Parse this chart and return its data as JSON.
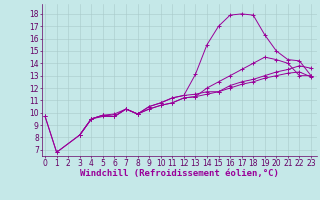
{
  "xlabel": "Windchill (Refroidissement éolien,°C)",
  "background_color": "#c5e8e8",
  "grid_color": "#aacaca",
  "line_color": "#990099",
  "x_ticks": [
    0,
    1,
    2,
    3,
    4,
    5,
    6,
    7,
    8,
    9,
    10,
    11,
    12,
    13,
    14,
    15,
    16,
    17,
    18,
    19,
    20,
    21,
    22,
    23
  ],
  "y_ticks": [
    7,
    8,
    9,
    10,
    11,
    12,
    13,
    14,
    15,
    16,
    17,
    18
  ],
  "ylim": [
    6.5,
    18.8
  ],
  "xlim": [
    -0.3,
    23.5
  ],
  "line1_x": [
    0,
    1,
    3,
    4,
    5,
    6,
    7,
    8,
    9,
    10,
    11,
    12,
    13,
    14,
    15,
    16,
    17,
    18,
    19,
    20,
    21,
    22,
    23
  ],
  "line1_y": [
    9.7,
    6.8,
    8.2,
    9.5,
    9.8,
    9.9,
    10.3,
    9.9,
    10.5,
    10.8,
    11.2,
    11.4,
    13.1,
    15.5,
    17.0,
    17.9,
    18.0,
    17.9,
    16.3,
    15.0,
    14.3,
    14.2,
    13.0
  ],
  "line2_x": [
    0,
    1,
    3,
    4,
    5,
    6,
    7,
    8,
    9,
    10,
    11,
    12,
    13,
    14,
    15,
    16,
    17,
    18,
    19,
    20,
    21,
    22,
    23
  ],
  "line2_y": [
    9.7,
    6.8,
    8.2,
    9.5,
    9.8,
    9.7,
    10.3,
    9.9,
    10.5,
    10.8,
    11.2,
    11.4,
    11.5,
    11.7,
    11.7,
    12.2,
    12.5,
    12.7,
    13.0,
    13.3,
    13.5,
    13.8,
    13.6
  ],
  "line3_x": [
    3,
    4,
    5,
    6,
    7,
    8,
    9,
    10,
    11,
    12,
    13,
    14,
    15,
    16,
    17,
    18,
    19,
    20,
    21,
    22,
    23
  ],
  "line3_y": [
    8.2,
    9.5,
    9.8,
    9.7,
    10.3,
    9.9,
    10.3,
    10.6,
    10.8,
    11.2,
    11.3,
    12.0,
    12.5,
    13.0,
    13.5,
    14.0,
    14.5,
    14.3,
    14.0,
    13.0,
    13.0
  ],
  "line4_x": [
    3,
    4,
    5,
    6,
    7,
    8,
    9,
    10,
    11,
    12,
    13,
    14,
    15,
    16,
    17,
    18,
    19,
    20,
    21,
    22,
    23
  ],
  "line4_y": [
    8.2,
    9.5,
    9.7,
    9.7,
    10.3,
    9.9,
    10.3,
    10.6,
    10.8,
    11.2,
    11.3,
    11.5,
    11.7,
    12.0,
    12.3,
    12.5,
    12.8,
    13.0,
    13.2,
    13.3,
    12.9
  ],
  "tick_fontsize": 5.5,
  "xlabel_fontsize": 6.5
}
